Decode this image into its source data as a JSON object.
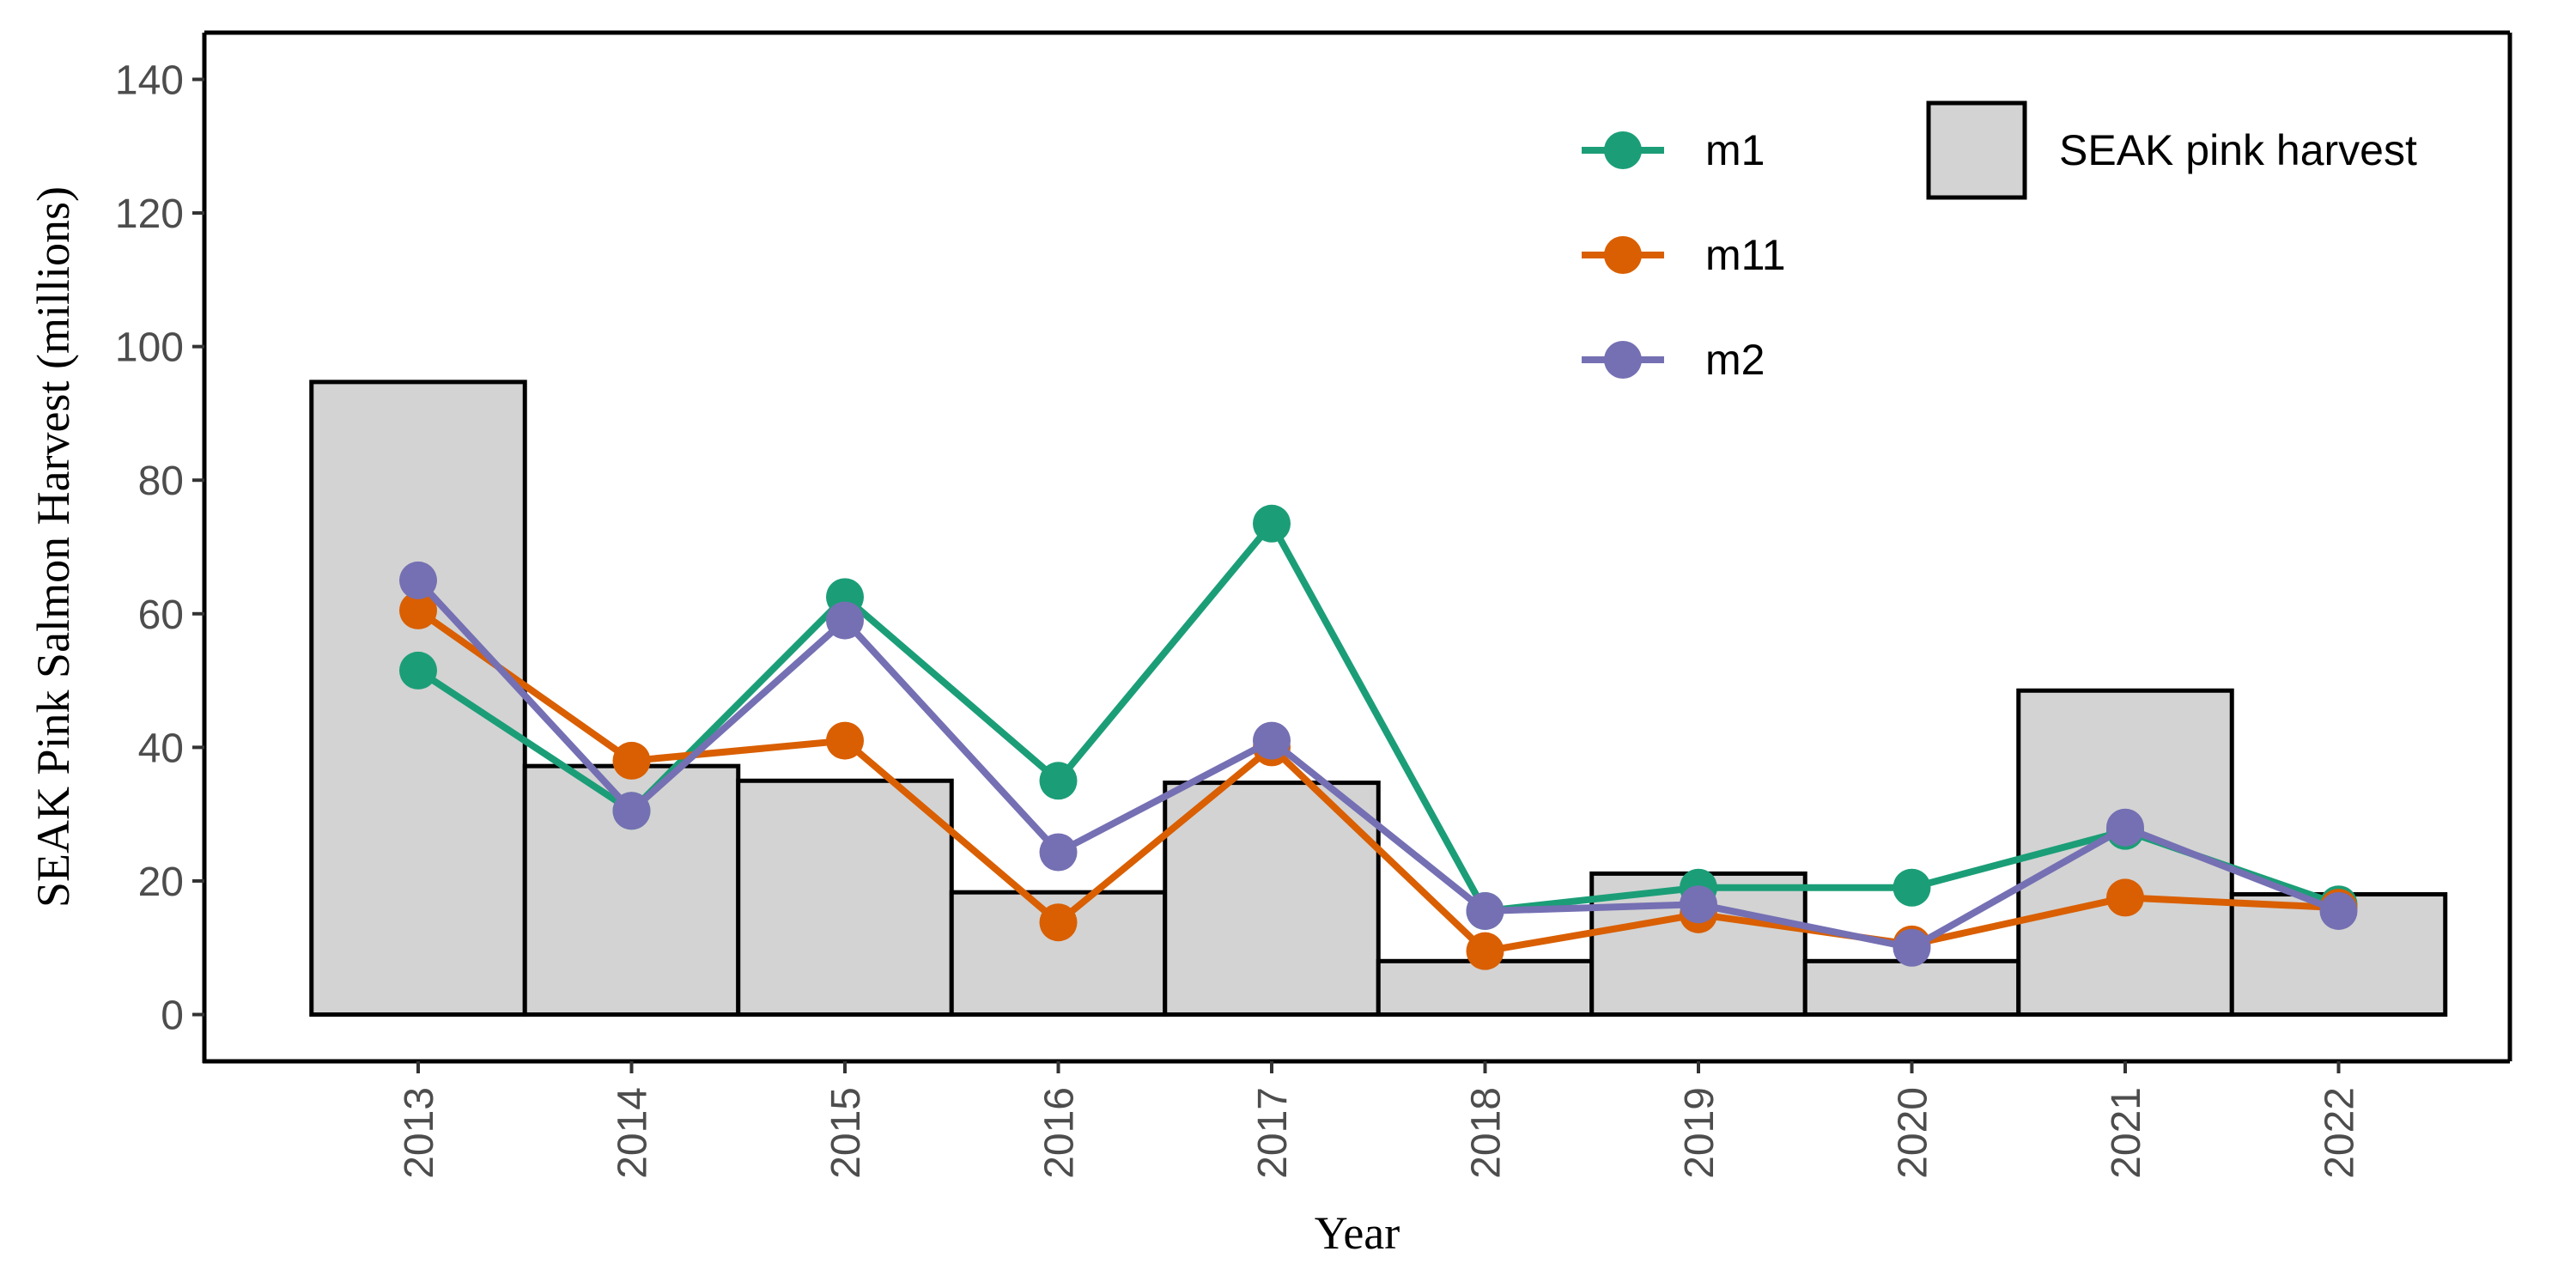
{
  "chart_data": {
    "type": "bar",
    "title": "",
    "xlabel": "Year",
    "ylabel": "SEAK Pink Salmon Harvest (millions)",
    "ylim": [
      -7,
      147
    ],
    "yticks": [
      0,
      20,
      40,
      60,
      80,
      100,
      120,
      140
    ],
    "categories": [
      "2013",
      "2014",
      "2015",
      "2016",
      "2017",
      "2018",
      "2019",
      "2020",
      "2021",
      "2022"
    ],
    "bars": {
      "name": "SEAK pink harvest",
      "fill": "#d3d3d3",
      "stroke": "#000000",
      "values": [
        94.7,
        37.2,
        35.0,
        18.3,
        34.7,
        8.0,
        21.1,
        8.0,
        48.5,
        18.0
      ]
    },
    "series": [
      {
        "name": "m1",
        "color": "#1b9e77",
        "values": [
          51.5,
          30.5,
          62.5,
          35.0,
          73.5,
          15.5,
          19.0,
          19.0,
          27.5,
          16.5
        ]
      },
      {
        "name": "m11",
        "color": "#d95f02",
        "values": [
          60.5,
          38.0,
          41.0,
          13.8,
          40.0,
          9.5,
          15.0,
          10.5,
          17.5,
          16.0
        ]
      },
      {
        "name": "m2",
        "color": "#7570b3",
        "values": [
          65.0,
          30.5,
          59.0,
          24.3,
          41.0,
          15.5,
          16.5,
          10.0,
          28.0,
          15.5
        ]
      }
    ],
    "legend_position": "top-right",
    "grid": false
  }
}
